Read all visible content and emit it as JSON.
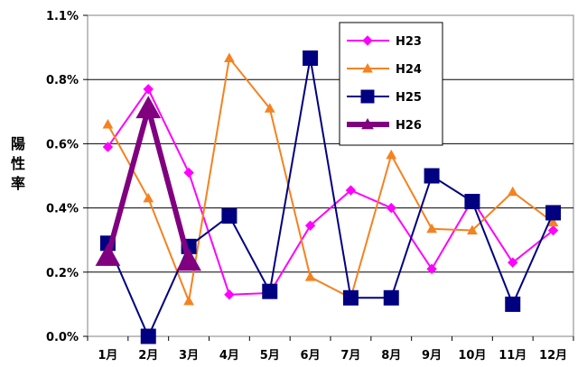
{
  "chart_data": {
    "type": "line",
    "ylabel": "陽性率",
    "categories": [
      "1月",
      "2月",
      "3月",
      "4月",
      "5月",
      "6月",
      "7月",
      "8月",
      "9月",
      "10月",
      "11月",
      "12月"
    ],
    "ylim": [
      0,
      1.1
    ],
    "yticks": [
      0.0,
      0.2,
      0.4,
      0.6,
      0.8,
      1.1
    ],
    "ytick_labels": [
      "0.0%",
      "0.2%",
      "0.4%",
      "0.6%",
      "0.8%",
      "1.1%"
    ],
    "grid": true,
    "legend_position": "top-right",
    "series": [
      {
        "name": "H23",
        "color": "#ff00ff",
        "marker": "diamond",
        "width": 2,
        "values": [
          0.59,
          0.77,
          0.51,
          0.13,
          0.135,
          0.345,
          0.455,
          0.4,
          0.21,
          0.425,
          0.23,
          0.33
        ]
      },
      {
        "name": "H24",
        "color": "#f58220",
        "marker": "triangle",
        "width": 2,
        "values": [
          0.66,
          0.43,
          0.11,
          0.9,
          0.71,
          0.185,
          0.12,
          0.565,
          0.335,
          0.33,
          0.45,
          0.355
        ]
      },
      {
        "name": "H25",
        "color": "#000080",
        "marker": "square",
        "width": 2,
        "values": [
          0.29,
          0.0,
          0.28,
          0.375,
          0.14,
          0.9,
          0.12,
          0.12,
          0.5,
          0.42,
          0.1,
          0.385
        ]
      },
      {
        "name": "H26",
        "color": "#800080",
        "marker": "triangle",
        "width": 6,
        "values": [
          0.25,
          0.71,
          0.235,
          null,
          null,
          null,
          null,
          null,
          null,
          null,
          null,
          null
        ]
      }
    ]
  }
}
